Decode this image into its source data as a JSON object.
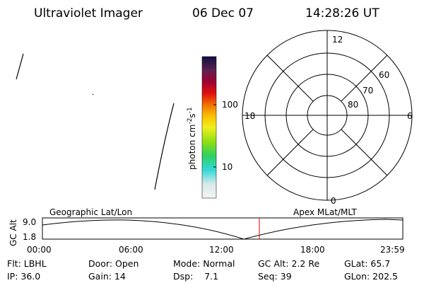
{
  "header": {
    "title": "Ultraviolet Imager",
    "date": "06 Dec 07",
    "time": "14:28:26 UT"
  },
  "colorbar": {
    "label": "photon cm",
    "exp1": "-2",
    "unit2": "s",
    "exp2": "-1",
    "tick_labels": [
      "100",
      "10"
    ]
  },
  "polar": {
    "hour_labels": [
      "12",
      "18",
      "6",
      "0"
    ],
    "lat_labels": [
      "60",
      "70",
      "80"
    ]
  },
  "altitude_plot": {
    "left_title": "Geographic Lat/Lon",
    "right_title": "Apex MLat/MLT",
    "y_label": "GC Alt",
    "y_labels": [
      "9.0",
      "1.8"
    ],
    "x_labels": [
      "00:00",
      "06:00",
      "12:00",
      "18:00",
      "23:59"
    ]
  },
  "info": {
    "rows": [
      [
        "Flt: LBHL",
        "Door: Open",
        "Mode: Normal",
        "GC Alt: 2.2 Re",
        "GLat: 65.7"
      ],
      [
        "IP: 36.0",
        "Gain: 14",
        "Dsp:    7.1",
        "Seq: 39",
        "GLon: 202.5"
      ]
    ]
  }
}
